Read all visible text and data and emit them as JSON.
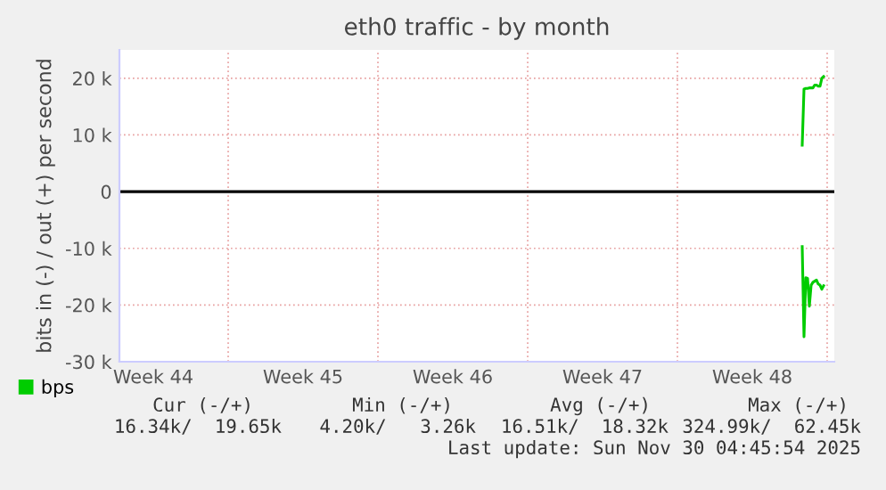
{
  "chart_data": {
    "type": "line",
    "title": "eth0 traffic - by month",
    "ylabel": "bits in (-) / out (+) per second",
    "xlim": [
      "2025-10-28T22:00",
      "2025-12-01T08:00"
    ],
    "ylim": [
      -30000,
      25000
    ],
    "xticks": [
      {
        "value": "2025-10-30T12:00",
        "label": "Week 44"
      },
      {
        "value": "2025-11-06T12:00",
        "label": "Week 45"
      },
      {
        "value": "2025-11-13T12:00",
        "label": "Week 46"
      },
      {
        "value": "2025-11-20T12:00",
        "label": "Week 47"
      },
      {
        "value": "2025-11-27T12:00",
        "label": "Week 48"
      }
    ],
    "yticks": [
      {
        "value": -30000,
        "label": "-30 k"
      },
      {
        "value": -20000,
        "label": "-20 k"
      },
      {
        "value": -10000,
        "label": "-10 k"
      },
      0,
      {
        "value": 10000,
        "label": "10 k"
      },
      {
        "value": 20000,
        "label": "20 k"
      }
    ],
    "grid": true,
    "legend": "bottom left",
    "ref_lines": [
      {
        "axis": "y",
        "value": 0,
        "color": "#000000"
      }
    ],
    "series": [
      {
        "name": "bps",
        "color": "#00cc00",
        "x": [
          "2025-11-29T20:00",
          "2025-11-29T22:00",
          "2025-11-30T00:00",
          "2025-11-30T02:00",
          "2025-11-30T04:00",
          "2025-11-30T06:00",
          "2025-11-30T08:00",
          "2025-11-30T10:00",
          "2025-11-30T12:00",
          "2025-11-30T14:00",
          "2025-11-30T16:00",
          "2025-11-30T18:00",
          "2025-11-30T20:00"
        ],
        "values": [
          8200,
          18100,
          18200,
          18200,
          18300,
          18300,
          18300,
          18800,
          18800,
          18600,
          18600,
          20000,
          20300
        ]
      },
      {
        "color": "#00cc00",
        "x": [
          "2025-11-29T20:00",
          "2025-11-29T22:00",
          "2025-11-30T00:00",
          "2025-11-30T02:00",
          "2025-11-30T04:00",
          "2025-11-30T06:00",
          "2025-11-30T08:00",
          "2025-11-30T10:00",
          "2025-11-30T12:00",
          "2025-11-30T14:00",
          "2025-11-30T16:00",
          "2025-11-30T18:00",
          "2025-11-30T20:00"
        ],
        "values": [
          -9700,
          -25600,
          -15200,
          -15300,
          -20200,
          -16500,
          -16000,
          -15800,
          -15600,
          -16300,
          -16500,
          -17200,
          -16600
        ]
      }
    ],
    "annotations": [
      "Cur (-/+)",
      "Min (-/+)",
      "Avg (-/+)",
      "Max (-/+)",
      "16.34k/  19.65k",
      "4.20k/   3.26k",
      "16.51k/  18.32k",
      "324.99k/  62.45k",
      "Last update: Sun Nov 30 04:45:54 2025"
    ]
  }
}
